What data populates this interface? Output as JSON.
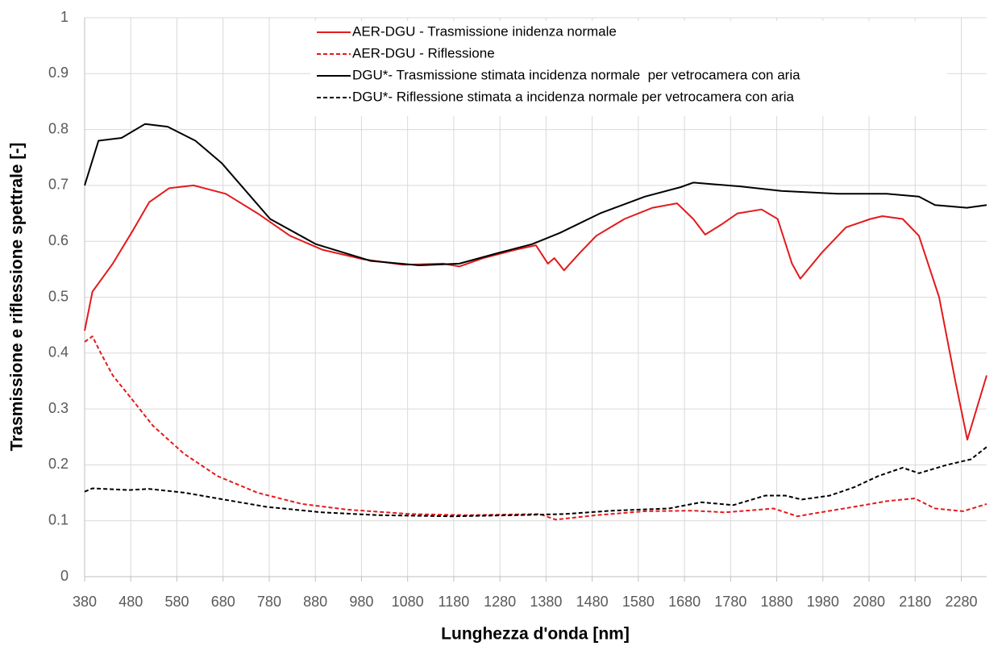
{
  "chart_data": {
    "type": "line",
    "xlabel": "Lunghezza d'onda [nm]",
    "ylabel": "Trasmissione e riflessione spettrale [-]",
    "xlim": [
      380,
      2335
    ],
    "ylim": [
      0,
      1
    ],
    "xticks": [
      380,
      480,
      580,
      680,
      780,
      880,
      980,
      1080,
      1180,
      1280,
      1380,
      1480,
      1580,
      1680,
      1780,
      1880,
      1980,
      2080,
      2180,
      2280
    ],
    "yticks": [
      0,
      0.1,
      0.2,
      0.3,
      0.4,
      0.5,
      0.6,
      0.7,
      0.8,
      0.9,
      1
    ],
    "grid": true,
    "legend": "top-right",
    "series": [
      {
        "name": "AER-DGU - Trasmissione inidenza normale",
        "color": "#e31a1c",
        "dash": false,
        "x": [
          380,
          397,
          441,
          485,
          520,
          563,
          616,
          686,
          755,
          825,
          895,
          983,
          1070,
          1157,
          1192,
          1244,
          1314,
          1358,
          1384,
          1398,
          1419,
          1454,
          1489,
          1550,
          1611,
          1664,
          1699,
          1725,
          1760,
          1795,
          1847,
          1882,
          1913,
          1931,
          1978,
          2030,
          2083,
          2109,
          2153,
          2188,
          2232,
          2267,
          2293,
          2335
        ],
        "values": [
          0.44,
          0.51,
          0.56,
          0.62,
          0.67,
          0.695,
          0.7,
          0.685,
          0.65,
          0.61,
          0.585,
          0.568,
          0.558,
          0.56,
          0.555,
          0.57,
          0.585,
          0.593,
          0.56,
          0.57,
          0.548,
          0.58,
          0.61,
          0.64,
          0.66,
          0.668,
          0.64,
          0.612,
          0.63,
          0.65,
          0.657,
          0.64,
          0.56,
          0.533,
          0.58,
          0.625,
          0.64,
          0.645,
          0.64,
          0.61,
          0.5,
          0.35,
          0.245,
          0.36
        ]
      },
      {
        "name": "AER-DGU - Riflessione",
        "color": "#e31a1c",
        "dash": true,
        "x": [
          380,
          397,
          415,
          441,
          480,
          528,
          595,
          668,
          755,
          851,
          947,
          1087,
          1209,
          1366,
          1401,
          1489,
          1594,
          1699,
          1768,
          1873,
          1925,
          1960,
          2048,
          2118,
          2179,
          2223,
          2284,
          2335
        ],
        "values": [
          0.42,
          0.43,
          0.4,
          0.36,
          0.32,
          0.27,
          0.22,
          0.18,
          0.15,
          0.13,
          0.12,
          0.112,
          0.11,
          0.112,
          0.102,
          0.11,
          0.117,
          0.118,
          0.115,
          0.122,
          0.108,
          0.113,
          0.125,
          0.135,
          0.14,
          0.122,
          0.117,
          0.13
        ]
      },
      {
        "name": "DGU*- Trasmissione stimata incidenza normale  per vetrocamera con aria",
        "color": "#000000",
        "dash": false,
        "x": [
          380,
          410,
          460,
          511,
          560,
          620,
          677,
          782,
          881,
          1000,
          1105,
          1192,
          1280,
          1350,
          1410,
          1497,
          1594,
          1672,
          1699,
          1803,
          1890,
          2013,
          2118,
          2188,
          2223,
          2292,
          2335
        ],
        "values": [
          0.7,
          0.78,
          0.785,
          0.81,
          0.805,
          0.78,
          0.74,
          0.64,
          0.595,
          0.565,
          0.557,
          0.56,
          0.58,
          0.595,
          0.615,
          0.65,
          0.68,
          0.697,
          0.705,
          0.698,
          0.69,
          0.685,
          0.685,
          0.68,
          0.665,
          0.66,
          0.665
        ]
      },
      {
        "name": "DGU*- Riflessione stimata a incidenza normale per vetrocamera con aria",
        "color": "#000000",
        "dash": true,
        "x": [
          380,
          397,
          476,
          520,
          598,
          668,
          773,
          895,
          1017,
          1174,
          1314,
          1419,
          1524,
          1646,
          1716,
          1786,
          1855,
          1899,
          1934,
          1995,
          2048,
          2100,
          2153,
          2188,
          2249,
          2301,
          2335
        ],
        "values": [
          0.152,
          0.158,
          0.155,
          0.157,
          0.15,
          0.14,
          0.125,
          0.115,
          0.11,
          0.108,
          0.11,
          0.112,
          0.118,
          0.122,
          0.133,
          0.128,
          0.145,
          0.145,
          0.138,
          0.145,
          0.16,
          0.18,
          0.195,
          0.185,
          0.2,
          0.21,
          0.232
        ]
      }
    ]
  }
}
